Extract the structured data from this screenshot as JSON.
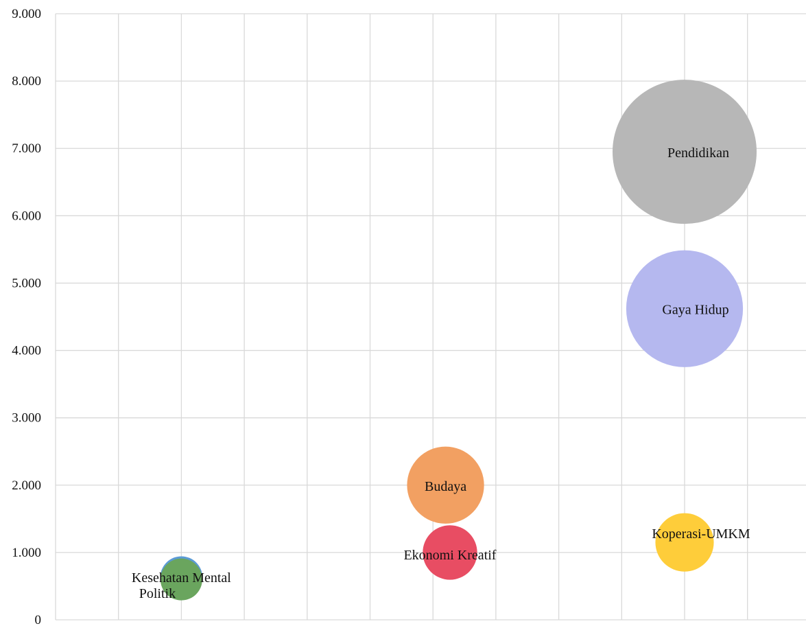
{
  "chart_data": {
    "type": "bubble",
    "title": "",
    "xlabel": "",
    "ylabel": "",
    "ylim": [
      0,
      9000
    ],
    "xlim": [
      0,
      12
    ],
    "y_ticks": [
      {
        "value": 0,
        "label": "0"
      },
      {
        "value": 1000,
        "label": "1.000"
      },
      {
        "value": 2000,
        "label": "2.000"
      },
      {
        "value": 3000,
        "label": "3.000"
      },
      {
        "value": 4000,
        "label": "4.000"
      },
      {
        "value": 5000,
        "label": "5.000"
      },
      {
        "value": 6000,
        "label": "6.000"
      },
      {
        "value": 7000,
        "label": "7.000"
      },
      {
        "value": 8000,
        "label": "8.000"
      },
      {
        "value": 9000,
        "label": "9.000"
      }
    ],
    "x_grid": [
      1,
      2,
      3,
      4,
      5,
      6,
      7,
      8,
      9,
      10,
      11,
      12
    ],
    "grid": true,
    "legend": "none",
    "points": [
      {
        "name": "Pendidikan",
        "x": 10,
        "y": 6950,
        "size": 7000,
        "color": "#b7b7b7"
      },
      {
        "name": "Gaya Hidup",
        "x": 10,
        "y": 4620,
        "size": 4600,
        "color": "#b5b8ef"
      },
      {
        "name": "Budaya",
        "x": 6.2,
        "y": 2000,
        "size": 2000,
        "color": "#f2a062"
      },
      {
        "name": "Koperasi-UMKM",
        "x": 10,
        "y": 1150,
        "size": 1150,
        "color": "#fecd3a"
      },
      {
        "name": "Ekonomi Kreatif",
        "x": 6.27,
        "y": 1000,
        "size": 1000,
        "color": "#e84d63"
      },
      {
        "name": "Kesehatan Mental",
        "x": 2,
        "y": 630,
        "size": 600,
        "color": "#5b9bd5"
      },
      {
        "name": "Politik",
        "x": 2,
        "y": 600,
        "size": 590,
        "color": "#6aa55e"
      }
    ]
  }
}
